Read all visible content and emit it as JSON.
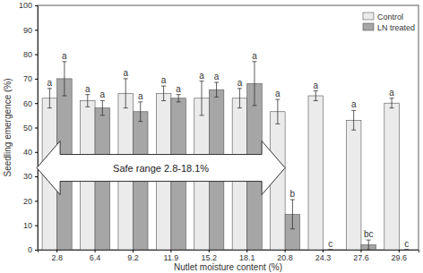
{
  "chart_data": {
    "type": "bar",
    "x_label": "Nutlet moisture content (%)",
    "y_label": "Seedling emergence (%)",
    "categories": [
      "2.8",
      "6.4",
      "9.2",
      "11.9",
      "15.2",
      "18.1",
      "20.8",
      "24.3",
      "27.6",
      "29.6"
    ],
    "series": [
      {
        "name": "Control",
        "color": "#ebebeb",
        "values": [
          62,
          61,
          64,
          64,
          62,
          62,
          56.5,
          63,
          53,
          60
        ],
        "errors": [
          4,
          2.5,
          6,
          3,
          7,
          4,
          5,
          2,
          4,
          2
        ],
        "letters": [
          "a",
          "a",
          "a",
          "a",
          "a",
          "a",
          "a",
          "a",
          "a",
          "a"
        ]
      },
      {
        "name": "LN treated",
        "color": "#a6a6a6",
        "values": [
          70,
          58,
          56.5,
          62,
          65.5,
          68,
          14.5,
          0,
          2,
          0
        ],
        "errors": [
          7,
          3,
          4,
          1.5,
          3,
          9,
          6,
          0,
          2,
          0
        ],
        "letters": [
          "a",
          "a",
          "a",
          "a",
          "a",
          "a",
          "b",
          "c",
          "bc",
          "c"
        ]
      }
    ],
    "annotations": [
      {
        "text": "Safe range 2.8-18.1%"
      }
    ],
    "ylim": [
      0,
      100
    ],
    "yticks": [
      0,
      10,
      20,
      30,
      40,
      50,
      60,
      70,
      80,
      90,
      100
    ],
    "legend": "upper right",
    "grid": false
  }
}
